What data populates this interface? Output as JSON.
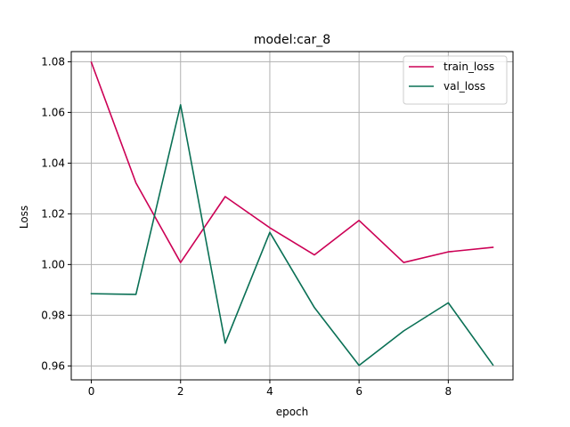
{
  "chart_data": {
    "type": "line",
    "title": "model:car_8",
    "xlabel": "epoch",
    "ylabel": "Loss",
    "x": [
      0,
      1,
      2,
      3,
      4,
      5,
      6,
      7,
      8,
      9
    ],
    "xlim": [
      -0.45,
      9.45
    ],
    "ylim": [
      0.9545,
      1.084
    ],
    "xticks": [
      0,
      2,
      4,
      6,
      8
    ],
    "yticks": [
      0.96,
      0.98,
      1.0,
      1.02,
      1.04,
      1.06,
      1.08
    ],
    "ytick_labels": [
      "0.96",
      "0.98",
      "1.00",
      "1.02",
      "1.04",
      "1.06",
      "1.08"
    ],
    "grid": true,
    "legend_position": "top-right",
    "series": [
      {
        "name": "train_loss",
        "color": "#cc0055",
        "values": [
          1.0798,
          1.0322,
          1.0008,
          1.0268,
          1.0145,
          1.0038,
          1.0174,
          1.0008,
          1.005,
          1.0068
        ]
      },
      {
        "name": "val_loss",
        "color": "#0a7055",
        "values": [
          0.9885,
          0.9882,
          1.063,
          0.969,
          1.0127,
          0.983,
          0.9602,
          0.9738,
          0.9849,
          0.9604
        ]
      }
    ]
  }
}
